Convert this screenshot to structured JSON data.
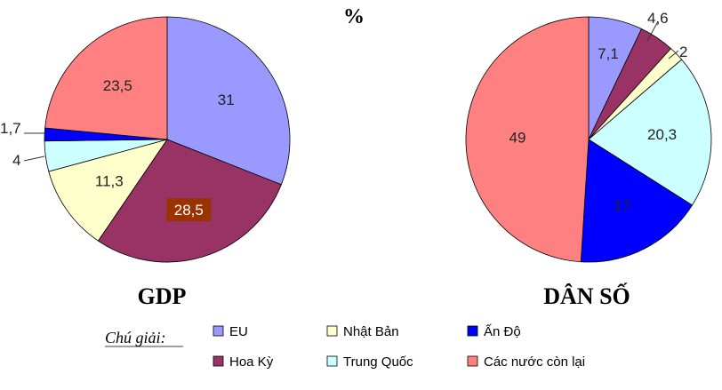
{
  "heading": "%",
  "legend_caption": "Chú giải:",
  "chart_data": [
    {
      "type": "pie",
      "title": "GDP",
      "slices": [
        {
          "label": "EU",
          "value": 31,
          "color": "#9999ff",
          "text": "31"
        },
        {
          "label": "Hoa Kỳ",
          "value": 28.5,
          "color": "#993366",
          "text": "28,5"
        },
        {
          "label": "Nhật Bản",
          "value": 11.3,
          "color": "#ffffcc",
          "text": "11,3"
        },
        {
          "label": "Trung Quốc",
          "value": 4,
          "color": "#ccffff",
          "text": "4"
        },
        {
          "label": "Ấn Độ",
          "value": 1.7,
          "color": "#0000ff",
          "text": "1,7"
        },
        {
          "label": "Các nước còn lại",
          "value": 23.5,
          "color": "#ff8080",
          "text": "23,5"
        }
      ]
    },
    {
      "type": "pie",
      "title": "DÂN SỐ",
      "slices": [
        {
          "label": "EU",
          "value": 7.1,
          "color": "#9999ff",
          "text": "7,1"
        },
        {
          "label": "Hoa Kỳ",
          "value": 4.6,
          "color": "#993366",
          "text": "4,6"
        },
        {
          "label": "Nhật Bản",
          "value": 2,
          "color": "#ffffcc",
          "text": "2"
        },
        {
          "label": "Trung Quốc",
          "value": 20.3,
          "color": "#ccffff",
          "text": "20,3"
        },
        {
          "label": "Ấn Độ",
          "value": 17,
          "color": "#0000ff",
          "text": "17"
        },
        {
          "label": "Các nước còn lại",
          "value": 49,
          "color": "#ff8080",
          "text": "49"
        }
      ]
    }
  ],
  "legend": [
    {
      "label": "EU",
      "color": "#9999ff"
    },
    {
      "label": "Nhật Bản",
      "color": "#ffffcc"
    },
    {
      "label": "Ấn Độ",
      "color": "#0000ff"
    },
    {
      "label": "Hoa Kỳ",
      "color": "#993366"
    },
    {
      "label": "Trung Quốc",
      "color": "#ccffff"
    },
    {
      "label": "Các nước còn lại",
      "color": "#ff8080"
    }
  ]
}
